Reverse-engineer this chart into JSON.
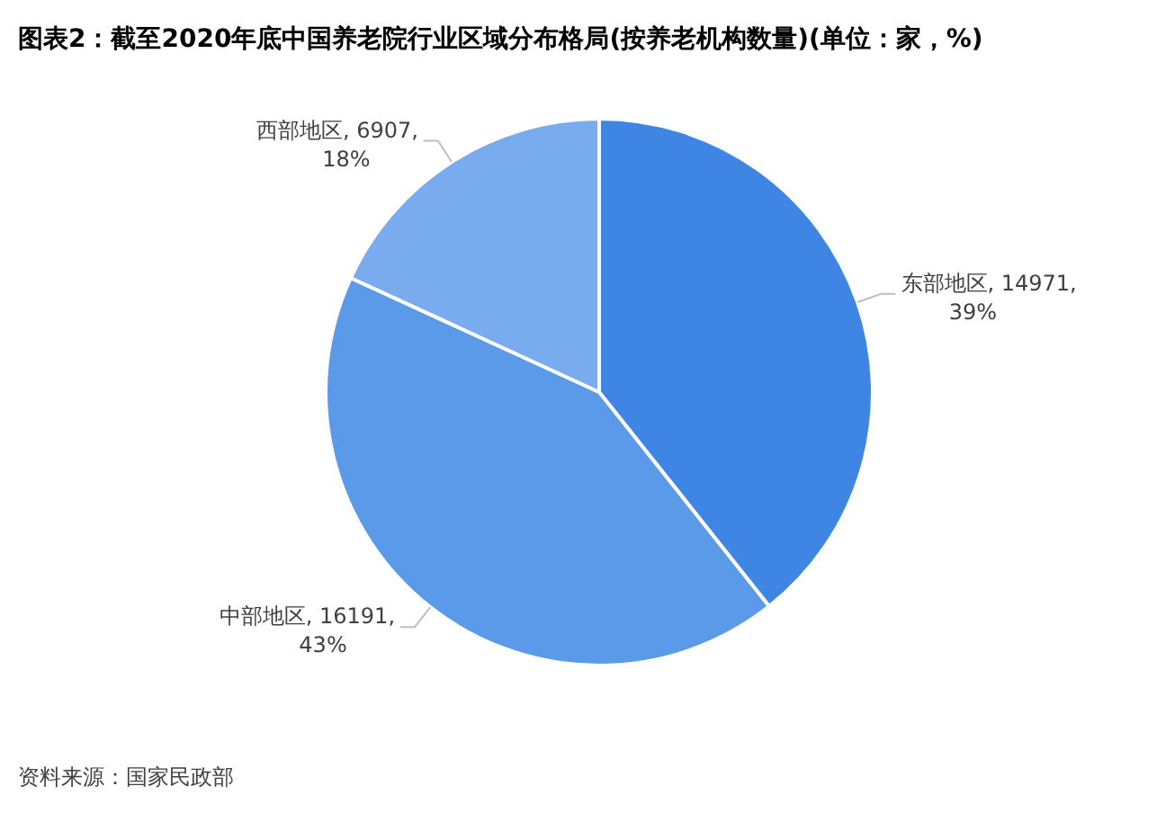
{
  "chart_data": {
    "type": "pie",
    "title": "图表2：截至2020年底中国养老院行业区域分布格局(按养老机构数量)(单位：家，%)",
    "categories": [
      "东部地区",
      "中部地区",
      "西部地区"
    ],
    "values": [
      14971,
      16191,
      6907
    ],
    "value_labels": [
      "14971, 39%",
      "16191, 43%",
      "6907, 18%"
    ],
    "colors": [
      "#3f86e4",
      "#5a9ae8",
      "#78acee"
    ],
    "annotations": [
      "资料来源：国家民政部"
    ]
  }
}
